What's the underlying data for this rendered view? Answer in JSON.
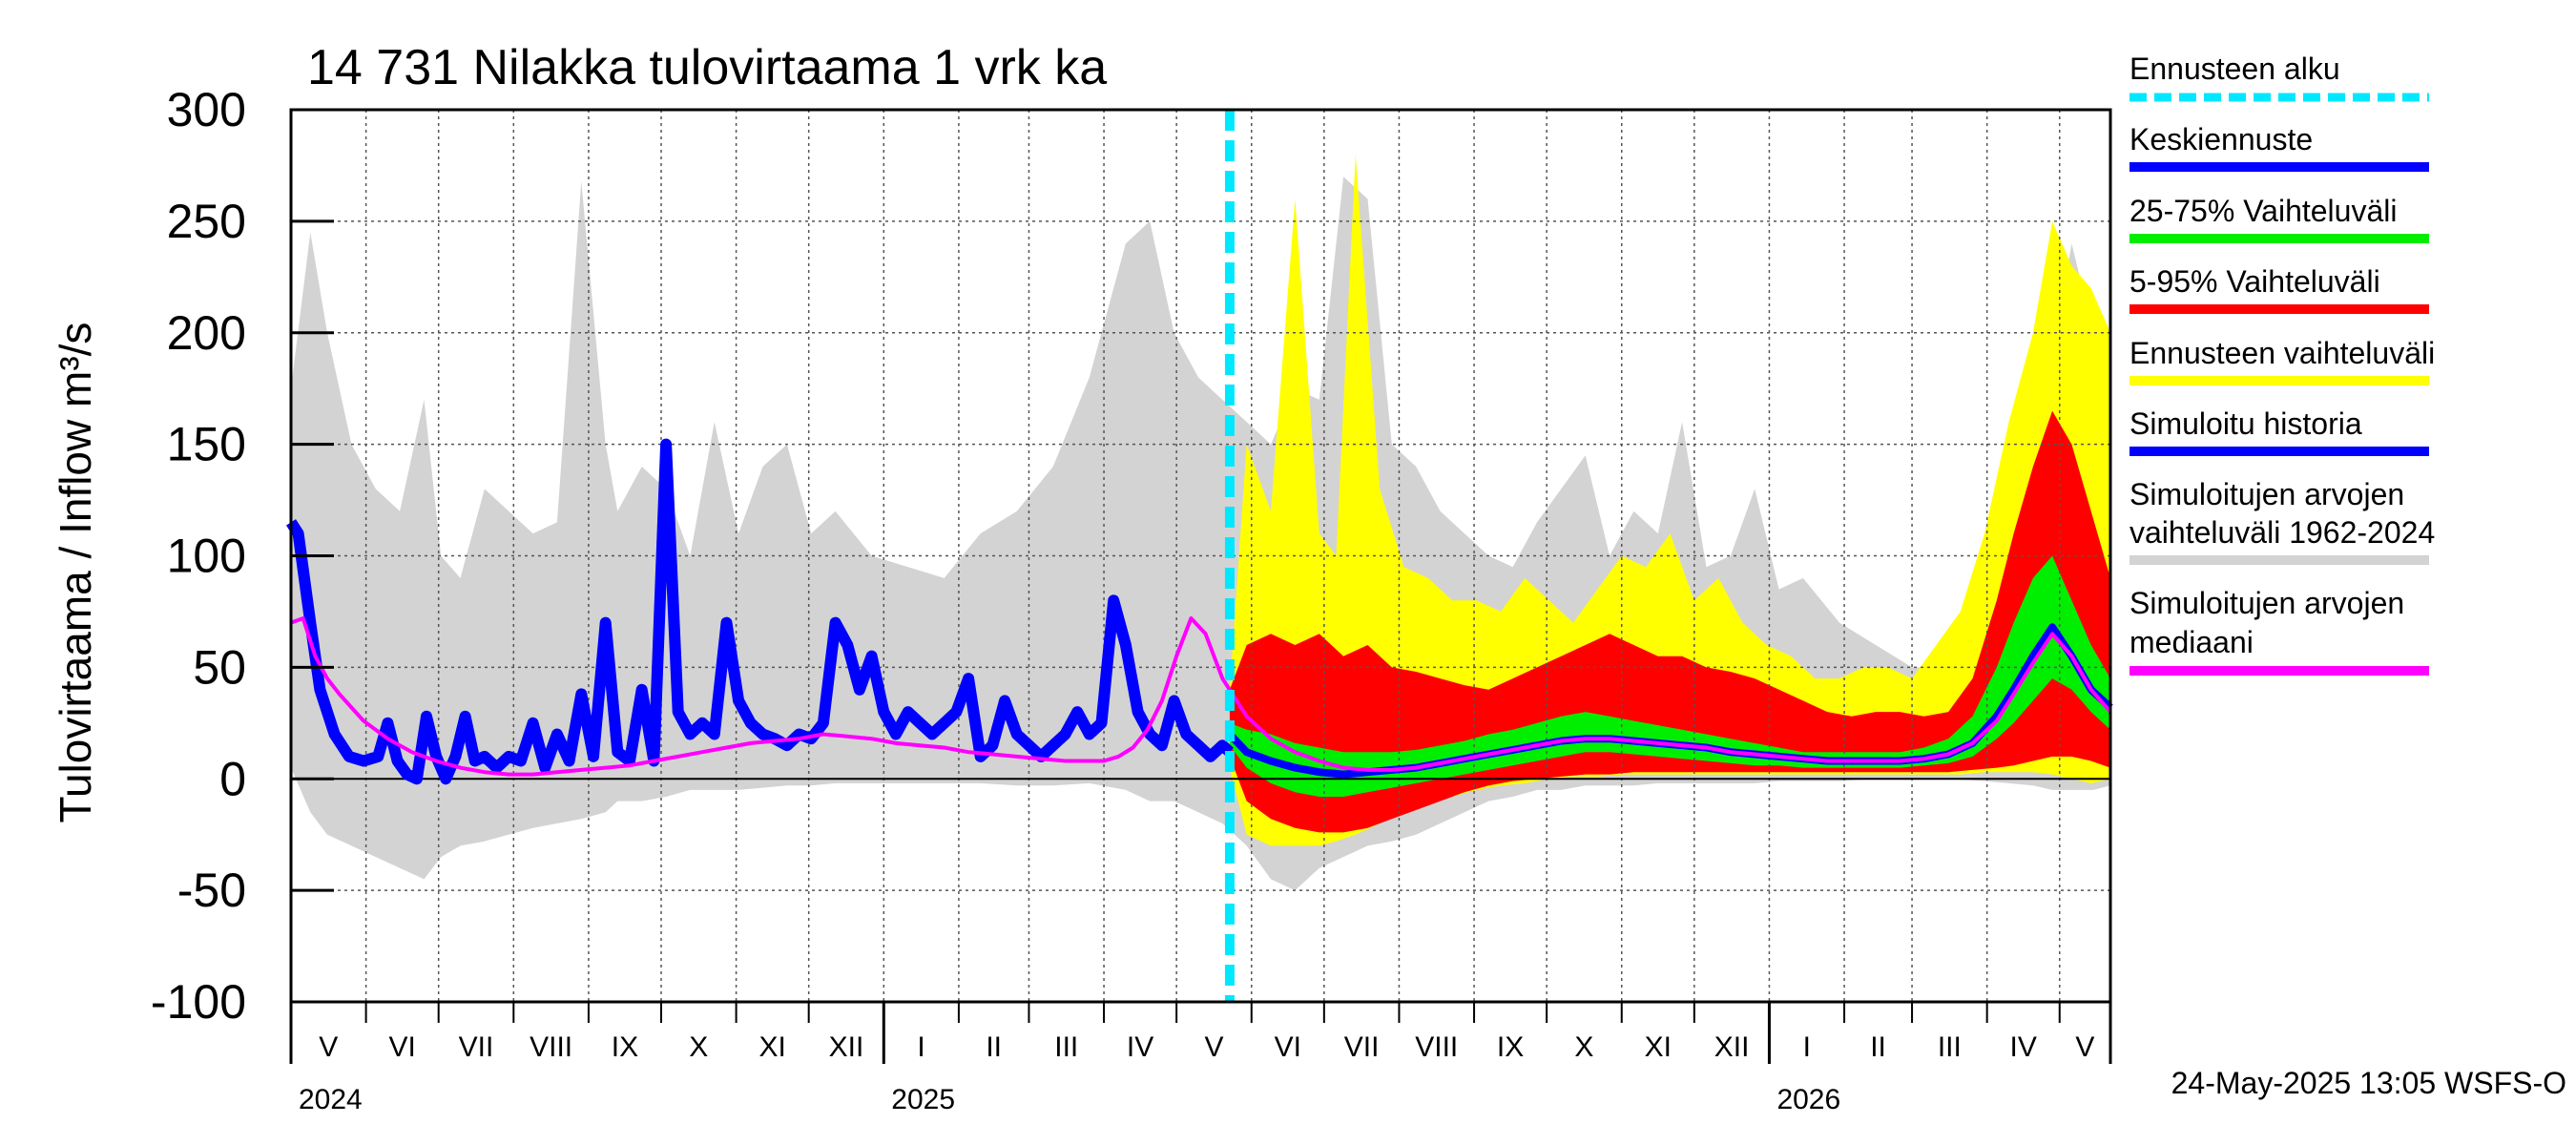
{
  "chart_data": {
    "type": "line",
    "title": "14 731 Nilakka tulovirtaama 1 vrk ka",
    "ylabel": "Tulovirtaama / Inflow    m³/s",
    "ylim": [
      -100,
      300
    ],
    "yticks": [
      -100,
      -50,
      0,
      50,
      100,
      150,
      200,
      250,
      300
    ],
    "xlim": [
      "2024-05-01",
      "2026-05-24"
    ],
    "months": [
      "V",
      "VI",
      "VII",
      "VIII",
      "IX",
      "X",
      "XI",
      "XII",
      "I",
      "II",
      "III",
      "IV",
      "V",
      "VI",
      "VII",
      "VIII",
      "IX",
      "X",
      "XI",
      "XII",
      "I",
      "II",
      "III",
      "IV",
      "V"
    ],
    "month_start_day": [
      0,
      31,
      61,
      92,
      123,
      153,
      184,
      214,
      245,
      276,
      305,
      336,
      366,
      397,
      427,
      458,
      489,
      519,
      550,
      580,
      611,
      642,
      670,
      701,
      731
    ],
    "years": [
      {
        "label": "2024",
        "day": 0
      },
      {
        "label": "2025",
        "day": 245
      },
      {
        "label": "2026",
        "day": 611
      }
    ],
    "forecast_start_day": 388,
    "grid": true,
    "legend_position": "right",
    "timestamp": "24-May-2025 13:05 WSFS-O",
    "series": [
      {
        "key": "hist_range",
        "name": "Simuloitujen arvojen vaihteluväli 1962-2024",
        "color": "#d3d3d3",
        "x": [
          0,
          8,
          15,
          25,
          35,
          45,
          55,
          62,
          70,
          80,
          90,
          100,
          110,
          120,
          130,
          135,
          145,
          155,
          165,
          175,
          185,
          195,
          205,
          215,
          225,
          240,
          255,
          270,
          285,
          300,
          315,
          330,
          345,
          355,
          365,
          375,
          385,
          395,
          405,
          415,
          425,
          435,
          445,
          455,
          465,
          475,
          485,
          495,
          505,
          515,
          525,
          535,
          545,
          555,
          565,
          575,
          585,
          595,
          605,
          615,
          625,
          640,
          655,
          670,
          685,
          700,
          710,
          720,
          728,
          736,
          745,
          752
        ],
        "upper": [
          175,
          245,
          200,
          150,
          130,
          120,
          170,
          100,
          90,
          130,
          120,
          110,
          115,
          268,
          150,
          120,
          140,
          130,
          100,
          160,
          110,
          140,
          150,
          110,
          120,
          100,
          95,
          90,
          110,
          120,
          140,
          180,
          240,
          250,
          200,
          180,
          170,
          160,
          150,
          175,
          170,
          270,
          260,
          150,
          140,
          120,
          110,
          100,
          95,
          115,
          130,
          145,
          100,
          120,
          110,
          160,
          95,
          100,
          130,
          85,
          90,
          70,
          60,
          50,
          50,
          55,
          80,
          120,
          190,
          240,
          200,
          100
        ],
        "lower": [
          5,
          -15,
          -25,
          -30,
          -35,
          -40,
          -45,
          -35,
          -30,
          -28,
          -25,
          -22,
          -20,
          -18,
          -15,
          -10,
          -10,
          -8,
          -5,
          -5,
          -5,
          -4,
          -3,
          -3,
          -2,
          -2,
          -2,
          -2,
          -2,
          -3,
          -3,
          -2,
          -5,
          -10,
          -10,
          -15,
          -20,
          -30,
          -45,
          -50,
          -40,
          -35,
          -30,
          -28,
          -25,
          -20,
          -15,
          -10,
          -8,
          -5,
          -5,
          -3,
          -3,
          -3,
          -2,
          -2,
          -2,
          -2,
          -2,
          -1,
          -1,
          -1,
          0,
          0,
          0,
          -1,
          -2,
          -3,
          -5,
          -5,
          -5,
          -3
        ]
      },
      {
        "key": "fc_range",
        "name": "Ennusteen vaihteluväli",
        "color": "#ffff00",
        "x": [
          388,
          395,
          405,
          415,
          425,
          432,
          440,
          450,
          460,
          470,
          480,
          490,
          500,
          510,
          520,
          530,
          540,
          550,
          560,
          570,
          580,
          590,
          600,
          610,
          620,
          630,
          640,
          650,
          660,
          670,
          680,
          690,
          700,
          710,
          720,
          728,
          736,
          744,
          752
        ],
        "upper": [
          40,
          150,
          120,
          260,
          110,
          100,
          280,
          130,
          95,
          90,
          80,
          80,
          75,
          90,
          80,
          70,
          85,
          100,
          95,
          110,
          80,
          90,
          70,
          60,
          55,
          45,
          45,
          50,
          50,
          45,
          60,
          75,
          110,
          160,
          200,
          250,
          230,
          220,
          200
        ],
        "lower": [
          5,
          -25,
          -30,
          -30,
          -30,
          -28,
          -25,
          -20,
          -15,
          -10,
          -8,
          -5,
          -3,
          -2,
          0,
          1,
          1,
          2,
          2,
          2,
          2,
          2,
          2,
          2,
          2,
          2,
          2,
          2,
          2,
          2,
          2,
          2,
          3,
          3,
          3,
          2,
          0,
          -2,
          0
        ]
      },
      {
        "key": "p5_95",
        "name": "5-95% Vaihteluväli",
        "color": "#ff0000",
        "x": [
          388,
          395,
          405,
          415,
          425,
          435,
          445,
          455,
          465,
          475,
          485,
          495,
          505,
          515,
          525,
          535,
          545,
          555,
          565,
          575,
          585,
          595,
          605,
          615,
          625,
          635,
          645,
          655,
          665,
          675,
          685,
          695,
          705,
          712,
          720,
          728,
          736,
          744,
          752
        ],
        "upper": [
          40,
          60,
          65,
          60,
          65,
          55,
          60,
          50,
          48,
          45,
          42,
          40,
          45,
          50,
          55,
          60,
          65,
          60,
          55,
          55,
          50,
          48,
          45,
          40,
          35,
          30,
          28,
          30,
          30,
          28,
          30,
          45,
          80,
          110,
          140,
          165,
          150,
          120,
          90
        ],
        "lower": [
          10,
          -10,
          -18,
          -22,
          -24,
          -24,
          -22,
          -18,
          -14,
          -10,
          -6,
          -3,
          -1,
          0,
          1,
          2,
          2,
          3,
          3,
          3,
          3,
          3,
          3,
          3,
          3,
          3,
          3,
          3,
          3,
          3,
          3,
          4,
          5,
          6,
          8,
          10,
          10,
          8,
          5
        ]
      },
      {
        "key": "p25_75",
        "name": "25-75% Vaihteluväli",
        "color": "#00ee00",
        "x": [
          388,
          395,
          405,
          415,
          425,
          435,
          445,
          455,
          465,
          475,
          485,
          495,
          505,
          515,
          525,
          535,
          545,
          555,
          565,
          575,
          585,
          595,
          605,
          615,
          625,
          635,
          645,
          655,
          665,
          675,
          685,
          695,
          705,
          712,
          720,
          728,
          736,
          744,
          752
        ],
        "upper": [
          25,
          22,
          20,
          16,
          14,
          12,
          12,
          12,
          13,
          15,
          17,
          20,
          22,
          25,
          28,
          30,
          28,
          26,
          24,
          22,
          20,
          18,
          16,
          14,
          12,
          12,
          12,
          12,
          12,
          14,
          18,
          28,
          50,
          70,
          90,
          100,
          80,
          60,
          45
        ],
        "lower": [
          15,
          5,
          -2,
          -6,
          -8,
          -8,
          -6,
          -4,
          -2,
          0,
          2,
          4,
          6,
          8,
          10,
          12,
          12,
          11,
          10,
          9,
          8,
          7,
          6,
          6,
          5,
          5,
          5,
          5,
          5,
          6,
          7,
          10,
          18,
          25,
          35,
          45,
          40,
          30,
          22
        ]
      },
      {
        "key": "hist_sim",
        "name": "Simuloitu historia",
        "color": "#0000ff",
        "x": [
          0,
          3,
          8,
          12,
          18,
          24,
          30,
          36,
          40,
          44,
          48,
          52,
          56,
          60,
          64,
          68,
          72,
          76,
          80,
          85,
          90,
          95,
          100,
          105,
          110,
          115,
          120,
          125,
          130,
          135,
          140,
          145,
          150,
          155,
          160,
          165,
          170,
          175,
          180,
          185,
          190,
          195,
          200,
          205,
          210,
          215,
          220,
          225,
          230,
          235,
          240,
          245,
          250,
          255,
          260,
          265,
          270,
          275,
          280,
          285,
          290,
          295,
          300,
          305,
          310,
          315,
          320,
          325,
          330,
          335,
          340,
          345,
          350,
          355,
          360,
          365,
          370,
          375,
          380,
          385,
          388
        ],
        "values": [
          115,
          110,
          70,
          40,
          20,
          10,
          8,
          10,
          25,
          8,
          2,
          0,
          28,
          10,
          0,
          10,
          28,
          8,
          10,
          5,
          10,
          8,
          25,
          5,
          20,
          8,
          38,
          10,
          70,
          12,
          8,
          40,
          8,
          150,
          30,
          20,
          25,
          20,
          70,
          35,
          25,
          20,
          18,
          15,
          20,
          18,
          25,
          70,
          60,
          40,
          55,
          30,
          20,
          30,
          25,
          20,
          25,
          30,
          45,
          10,
          15,
          35,
          20,
          15,
          10,
          15,
          20,
          30,
          20,
          25,
          80,
          60,
          30,
          20,
          15,
          35,
          20,
          15,
          10,
          15,
          12
        ]
      },
      {
        "key": "median_fc",
        "name": "Keskiennuste",
        "color": "#0000ff",
        "x": [
          388,
          395,
          405,
          415,
          425,
          435,
          445,
          455,
          465,
          475,
          485,
          495,
          505,
          515,
          525,
          535,
          545,
          555,
          565,
          575,
          585,
          595,
          605,
          615,
          625,
          635,
          645,
          655,
          665,
          675,
          685,
          695,
          705,
          712,
          720,
          728,
          736,
          744,
          752
        ],
        "values": [
          20,
          12,
          8,
          5,
          3,
          2,
          3,
          4,
          5,
          7,
          9,
          11,
          13,
          15,
          17,
          18,
          18,
          17,
          16,
          15,
          14,
          12,
          11,
          10,
          9,
          8,
          8,
          8,
          8,
          9,
          11,
          16,
          28,
          40,
          55,
          68,
          55,
          40,
          32
        ]
      },
      {
        "key": "median_hist",
        "name": "Simuloitujen arvojen mediaani",
        "color": "#ff00ff",
        "x": [
          0,
          5,
          10,
          15,
          20,
          25,
          30,
          40,
          50,
          60,
          70,
          80,
          90,
          100,
          110,
          120,
          130,
          140,
          150,
          160,
          170,
          180,
          190,
          200,
          210,
          220,
          230,
          240,
          250,
          260,
          270,
          280,
          290,
          300,
          310,
          320,
          330,
          336,
          342,
          348,
          354,
          360,
          366,
          372,
          378,
          385,
          395,
          405,
          415,
          425,
          435,
          445,
          455,
          465,
          475,
          485,
          495,
          505,
          515,
          525,
          535,
          545,
          555,
          565,
          575,
          585,
          595,
          605,
          615,
          625,
          635,
          645,
          655,
          665,
          675,
          685,
          695,
          705,
          712,
          720,
          728,
          736,
          744,
          752
        ],
        "values": [
          70,
          72,
          55,
          45,
          38,
          32,
          26,
          18,
          12,
          8,
          5,
          3,
          2,
          2,
          3,
          4,
          5,
          6,
          8,
          10,
          12,
          14,
          16,
          17,
          18,
          20,
          19,
          18,
          16,
          15,
          14,
          12,
          11,
          10,
          9,
          8,
          8,
          8,
          10,
          14,
          22,
          35,
          55,
          72,
          65,
          45,
          28,
          18,
          12,
          8,
          5,
          4,
          4,
          5,
          7,
          9,
          11,
          13,
          15,
          17,
          18,
          18,
          17,
          16,
          15,
          14,
          12,
          11,
          10,
          9,
          8,
          8,
          8,
          8,
          9,
          11,
          16,
          26,
          38,
          52,
          65,
          55,
          40,
          30
        ]
      }
    ]
  },
  "legend": [
    {
      "label": "Ennusteen alku",
      "color": "#00e8ff",
      "style": "dashed"
    },
    {
      "label": "Keskiennuste",
      "color": "#0000ff",
      "style": "solid"
    },
    {
      "label": "25-75% Vaihteluväli",
      "color": "#00ee00",
      "style": "solid"
    },
    {
      "label": "5-95% Vaihteluväli",
      "color": "#ff0000",
      "style": "solid"
    },
    {
      "label": "Ennusteen vaihteluväli",
      "color": "#ffff00",
      "style": "solid"
    },
    {
      "label": "Simuloitu historia",
      "color": "#0000ff",
      "style": "solid"
    },
    {
      "label": "Simuloitujen arvojen",
      "label2": "vaihteluväli 1962-2024",
      "color": "#d3d3d3",
      "style": "solid"
    },
    {
      "label": "Simuloitujen arvojen",
      "label2": "mediaani",
      "color": "#ff00ff",
      "style": "solid"
    }
  ]
}
